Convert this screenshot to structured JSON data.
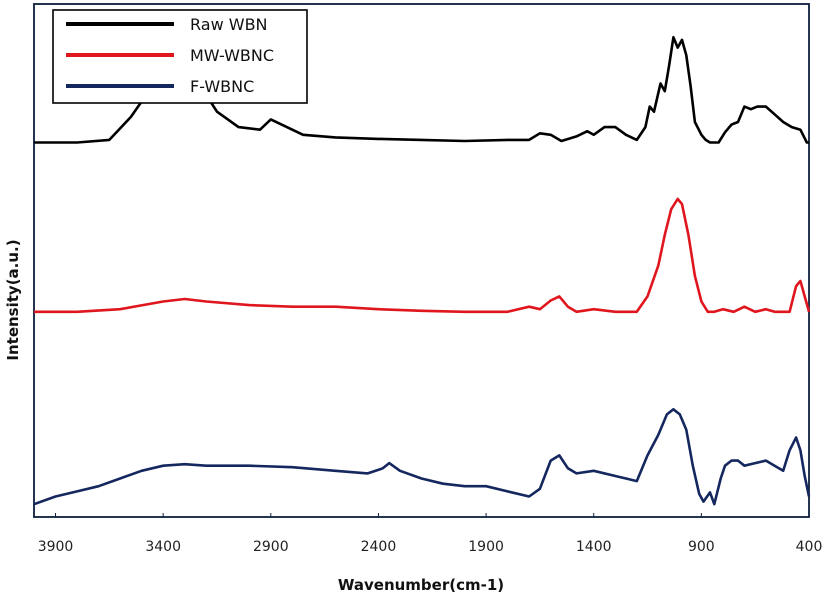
{
  "chart_data": {
    "type": "line",
    "title": "",
    "xlabel": "Wavenumber(cm-1)",
    "ylabel": "Intensity(a.u.)",
    "xlim": [
      4000,
      400
    ],
    "x_reversed": true,
    "xticks": [
      3900,
      3400,
      2900,
      2400,
      1900,
      1400,
      900,
      400
    ],
    "y_ticks_shown": false,
    "grid": false,
    "legend_position": "top-left",
    "series": [
      {
        "name": "Raw WBN",
        "color": "#000000",
        "points": [
          [
            4000,
            0.73
          ],
          [
            3800,
            0.73
          ],
          [
            3650,
            0.735
          ],
          [
            3550,
            0.78
          ],
          [
            3450,
            0.84
          ],
          [
            3350,
            0.875
          ],
          [
            3300,
            0.875
          ],
          [
            3250,
            0.855
          ],
          [
            3150,
            0.79
          ],
          [
            3050,
            0.76
          ],
          [
            2950,
            0.755
          ],
          [
            2900,
            0.775
          ],
          [
            2850,
            0.765
          ],
          [
            2750,
            0.745
          ],
          [
            2600,
            0.74
          ],
          [
            2400,
            0.737
          ],
          [
            2200,
            0.735
          ],
          [
            2000,
            0.733
          ],
          [
            1800,
            0.735
          ],
          [
            1700,
            0.735
          ],
          [
            1650,
            0.748
          ],
          [
            1600,
            0.745
          ],
          [
            1550,
            0.733
          ],
          [
            1480,
            0.742
          ],
          [
            1430,
            0.752
          ],
          [
            1400,
            0.745
          ],
          [
            1350,
            0.76
          ],
          [
            1300,
            0.76
          ],
          [
            1250,
            0.745
          ],
          [
            1200,
            0.735
          ],
          [
            1160,
            0.76
          ],
          [
            1140,
            0.8
          ],
          [
            1120,
            0.79
          ],
          [
            1090,
            0.845
          ],
          [
            1070,
            0.83
          ],
          [
            1050,
            0.88
          ],
          [
            1030,
            0.935
          ],
          [
            1010,
            0.915
          ],
          [
            990,
            0.93
          ],
          [
            970,
            0.9
          ],
          [
            950,
            0.84
          ],
          [
            930,
            0.77
          ],
          [
            900,
            0.745
          ],
          [
            880,
            0.735
          ],
          [
            860,
            0.73
          ],
          [
            820,
            0.73
          ],
          [
            790,
            0.75
          ],
          [
            760,
            0.765
          ],
          [
            730,
            0.77
          ],
          [
            700,
            0.8
          ],
          [
            670,
            0.795
          ],
          [
            640,
            0.8
          ],
          [
            600,
            0.8
          ],
          [
            560,
            0.785
          ],
          [
            520,
            0.77
          ],
          [
            480,
            0.76
          ],
          [
            440,
            0.755
          ],
          [
            410,
            0.73
          ],
          [
            400,
            0.73
          ]
        ]
      },
      {
        "name": "MW-WBNC",
        "color": "#e0161e",
        "points": [
          [
            4000,
            0.4
          ],
          [
            3800,
            0.4
          ],
          [
            3600,
            0.405
          ],
          [
            3400,
            0.42
          ],
          [
            3300,
            0.425
          ],
          [
            3200,
            0.42
          ],
          [
            3000,
            0.413
          ],
          [
            2800,
            0.41
          ],
          [
            2600,
            0.41
          ],
          [
            2400,
            0.405
          ],
          [
            2200,
            0.402
          ],
          [
            2000,
            0.4
          ],
          [
            1800,
            0.4
          ],
          [
            1700,
            0.41
          ],
          [
            1650,
            0.405
          ],
          [
            1600,
            0.422
          ],
          [
            1560,
            0.43
          ],
          [
            1520,
            0.41
          ],
          [
            1480,
            0.4
          ],
          [
            1400,
            0.405
          ],
          [
            1300,
            0.4
          ],
          [
            1250,
            0.4
          ],
          [
            1200,
            0.4
          ],
          [
            1150,
            0.43
          ],
          [
            1100,
            0.49
          ],
          [
            1070,
            0.55
          ],
          [
            1040,
            0.6
          ],
          [
            1010,
            0.62
          ],
          [
            990,
            0.61
          ],
          [
            960,
            0.55
          ],
          [
            930,
            0.47
          ],
          [
            900,
            0.42
          ],
          [
            870,
            0.4
          ],
          [
            840,
            0.4
          ],
          [
            800,
            0.405
          ],
          [
            750,
            0.4
          ],
          [
            700,
            0.41
          ],
          [
            650,
            0.4
          ],
          [
            600,
            0.405
          ],
          [
            560,
            0.4
          ],
          [
            520,
            0.4
          ],
          [
            490,
            0.4
          ],
          [
            460,
            0.45
          ],
          [
            440,
            0.46
          ],
          [
            420,
            0.43
          ],
          [
            400,
            0.4
          ]
        ]
      },
      {
        "name": "F-WBNC",
        "color": "#14275e",
        "points": [
          [
            4000,
            0.025
          ],
          [
            3900,
            0.04
          ],
          [
            3800,
            0.05
          ],
          [
            3700,
            0.06
          ],
          [
            3600,
            0.075
          ],
          [
            3500,
            0.09
          ],
          [
            3400,
            0.1
          ],
          [
            3300,
            0.103
          ],
          [
            3200,
            0.1
          ],
          [
            3000,
            0.1
          ],
          [
            2800,
            0.097
          ],
          [
            2600,
            0.09
          ],
          [
            2450,
            0.085
          ],
          [
            2380,
            0.095
          ],
          [
            2350,
            0.105
          ],
          [
            2300,
            0.09
          ],
          [
            2200,
            0.075
          ],
          [
            2100,
            0.065
          ],
          [
            2000,
            0.06
          ],
          [
            1900,
            0.06
          ],
          [
            1800,
            0.05
          ],
          [
            1700,
            0.04
          ],
          [
            1650,
            0.055
          ],
          [
            1600,
            0.11
          ],
          [
            1560,
            0.12
          ],
          [
            1520,
            0.095
          ],
          [
            1480,
            0.085
          ],
          [
            1400,
            0.09
          ],
          [
            1300,
            0.08
          ],
          [
            1250,
            0.075
          ],
          [
            1200,
            0.07
          ],
          [
            1150,
            0.12
          ],
          [
            1100,
            0.16
          ],
          [
            1060,
            0.2
          ],
          [
            1030,
            0.21
          ],
          [
            1000,
            0.2
          ],
          [
            970,
            0.17
          ],
          [
            940,
            0.1
          ],
          [
            910,
            0.045
          ],
          [
            890,
            0.03
          ],
          [
            860,
            0.048
          ],
          [
            840,
            0.025
          ],
          [
            810,
            0.075
          ],
          [
            790,
            0.1
          ],
          [
            760,
            0.11
          ],
          [
            730,
            0.11
          ],
          [
            700,
            0.1
          ],
          [
            650,
            0.105
          ],
          [
            600,
            0.11
          ],
          [
            560,
            0.1
          ],
          [
            520,
            0.09
          ],
          [
            490,
            0.13
          ],
          [
            460,
            0.155
          ],
          [
            440,
            0.13
          ],
          [
            420,
            0.08
          ],
          [
            400,
            0.04
          ]
        ]
      }
    ]
  }
}
